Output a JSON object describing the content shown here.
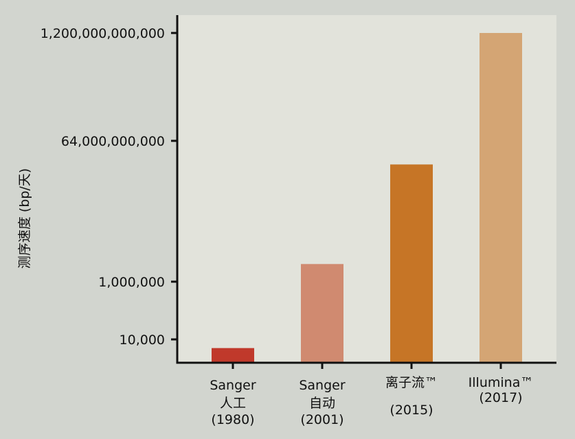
{
  "chart_data": {
    "type": "bar",
    "ylabel": "测序速度 (bp/天)",
    "y_scale": "log",
    "y_ticks": [
      {
        "value": 10000,
        "label": "10,000"
      },
      {
        "value": 1000000,
        "label": "1,000,000"
      },
      {
        "value": 64000000000,
        "label": "64,000,000,000"
      },
      {
        "value": 1200000000000,
        "label": "1,200,000,000,000"
      }
    ],
    "categories": [
      {
        "lines": [
          "Sanger",
          "人工",
          "(1980)"
        ],
        "value": 5000,
        "color": "#c0392b"
      },
      {
        "lines": [
          "Sanger",
          "自动",
          "(2001)"
        ],
        "value": 4000000,
        "color": "#d08a70"
      },
      {
        "lines": [
          "离子流™",
          "",
          "(2015)"
        ],
        "value": 10000000000,
        "color": "#c67526"
      },
      {
        "lines": [
          "Illumina™",
          "(2017)"
        ],
        "value": 1200000000000,
        "color": "#d4a574"
      }
    ],
    "colors": {
      "plot_bg": "#e2e3db",
      "page_bg": "#d2d5cf",
      "axis": "#111111"
    }
  }
}
